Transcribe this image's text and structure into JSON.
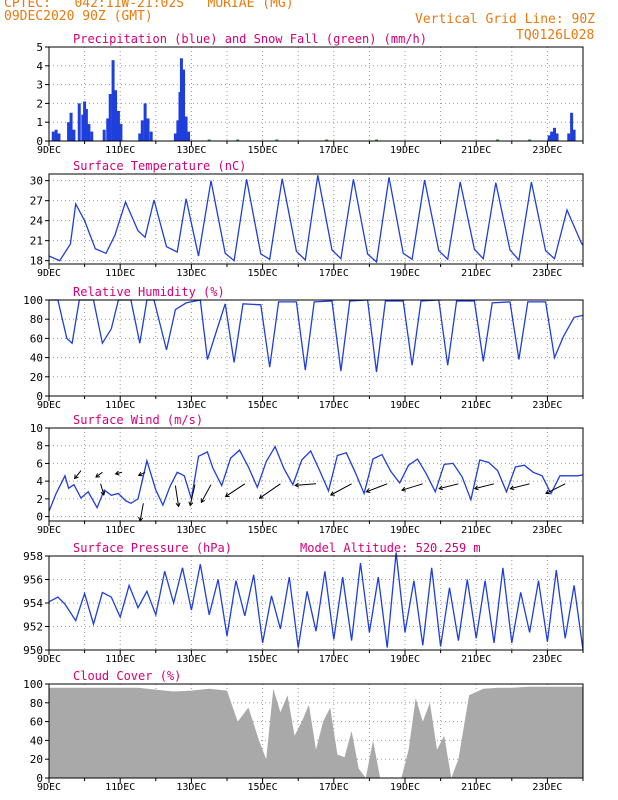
{
  "header": {
    "line1": "CPTEC:   042:11W-21:02S   MURIAE (MG)",
    "line2": "09DEC2020 90Z (GMT)",
    "grid_note": "Vertical Grid Line: 90Z",
    "code": "TQ0126L028"
  },
  "colors": {
    "accent": "#e87b10",
    "title": "#d4007a",
    "line": "#1f3fdc",
    "snow": "#1aa01a",
    "cloud": "#a9a9a9"
  },
  "x_axis": {
    "date_labels": [
      "9DEC",
      "11DEC",
      "13DEC",
      "15DEC",
      "17DEC",
      "19DEC",
      "21DEC",
      "23DEC"
    ],
    "label_days": [
      0,
      2,
      4,
      6,
      8,
      10,
      12,
      14
    ],
    "xlim_days": [
      0,
      15
    ]
  },
  "chart_data": [
    {
      "type": "bar",
      "title": "Precipitation (blue) and Snow Fall (green) (mm/h)",
      "ylim": [
        0,
        5
      ],
      "yticks": [
        0,
        1,
        2,
        3,
        4,
        5
      ],
      "series": [
        {
          "color": "blue",
          "points": [
            [
              0.12,
              0.5
            ],
            [
              0.2,
              0.6
            ],
            [
              0.28,
              0.4
            ],
            [
              0.55,
              1.0
            ],
            [
              0.62,
              1.5
            ],
            [
              0.7,
              0.6
            ],
            [
              0.85,
              2.0
            ],
            [
              0.95,
              1.4
            ],
            [
              1.0,
              2.1
            ],
            [
              1.05,
              1.7
            ],
            [
              1.12,
              0.9
            ],
            [
              1.2,
              0.5
            ],
            [
              1.55,
              0.6
            ],
            [
              1.65,
              1.2
            ],
            [
              1.72,
              2.5
            ],
            [
              1.8,
              4.3
            ],
            [
              1.87,
              2.7
            ],
            [
              1.95,
              1.6
            ],
            [
              2.02,
              0.9
            ],
            [
              2.55,
              0.4
            ],
            [
              2.62,
              1.1
            ],
            [
              2.7,
              2.0
            ],
            [
              2.78,
              1.2
            ],
            [
              2.87,
              0.5
            ],
            [
              3.55,
              0.4
            ],
            [
              3.62,
              1.1
            ],
            [
              3.68,
              2.6
            ],
            [
              3.72,
              4.4
            ],
            [
              3.78,
              3.8
            ],
            [
              3.85,
              1.3
            ],
            [
              3.92,
              0.5
            ],
            [
              14.05,
              0.3
            ],
            [
              14.12,
              0.5
            ],
            [
              14.2,
              0.7
            ],
            [
              14.27,
              0.4
            ],
            [
              14.6,
              0.4
            ],
            [
              14.68,
              1.5
            ],
            [
              14.75,
              0.6
            ]
          ]
        },
        {
          "color": "green",
          "points": [
            [
              4.5,
              0.08
            ],
            [
              5.3,
              0.08
            ],
            [
              6.4,
              0.08
            ],
            [
              7.8,
              0.08
            ],
            [
              9.2,
              0.08
            ],
            [
              12.6,
              0.08
            ],
            [
              13.5,
              0.08
            ]
          ]
        }
      ]
    },
    {
      "type": "line",
      "title": "Surface Temperature (nC)",
      "ylim": [
        17.5,
        31
      ],
      "yticks": [
        18,
        21,
        24,
        27,
        30
      ],
      "x": [
        0,
        0.3,
        0.6,
        0.75,
        1.0,
        1.3,
        1.6,
        1.85,
        2.15,
        2.5,
        2.7,
        2.95,
        3.3,
        3.6,
        3.85,
        4.2,
        4.55,
        4.95,
        5.2,
        5.55,
        5.95,
        6.2,
        6.55,
        6.95,
        7.2,
        7.55,
        7.95,
        8.2,
        8.55,
        8.95,
        9.2,
        9.55,
        9.95,
        10.2,
        10.55,
        10.95,
        11.2,
        11.55,
        11.95,
        12.2,
        12.55,
        12.95,
        13.2,
        13.55,
        13.95,
        14.2,
        14.55,
        14.95,
        15.0
      ],
      "y": [
        18.7,
        18.0,
        20.5,
        26.5,
        24.0,
        19.8,
        19.1,
        21.8,
        26.8,
        22.5,
        21.5,
        27.1,
        20.1,
        19.3,
        27.3,
        18.7,
        30.0,
        19.1,
        18.0,
        30.2,
        19.0,
        18.2,
        30.3,
        19.4,
        18.1,
        30.8,
        19.6,
        18.3,
        30.2,
        19.0,
        17.8,
        30.5,
        19.1,
        18.2,
        30.1,
        19.5,
        18.2,
        29.8,
        19.7,
        18.3,
        29.7,
        19.6,
        18.1,
        29.8,
        19.5,
        18.3,
        25.6,
        20.7,
        20.3
      ]
    },
    {
      "type": "line",
      "title": "Relative Humidity (%)",
      "ylim": [
        0,
        100
      ],
      "yticks": [
        0,
        20,
        40,
        60,
        80,
        100
      ],
      "x": [
        0,
        0.25,
        0.5,
        0.65,
        0.85,
        1.25,
        1.5,
        1.75,
        1.95,
        2.3,
        2.55,
        2.75,
        2.95,
        3.3,
        3.55,
        3.85,
        4.25,
        4.45,
        4.95,
        5.2,
        5.45,
        5.95,
        6.2,
        6.45,
        6.95,
        7.2,
        7.45,
        7.95,
        8.2,
        8.45,
        8.95,
        9.2,
        9.45,
        9.95,
        10.2,
        10.45,
        10.95,
        11.2,
        11.45,
        11.95,
        12.2,
        12.45,
        12.95,
        13.2,
        13.45,
        13.95,
        14.2,
        14.45,
        14.75,
        15.0
      ],
      "y": [
        100,
        100,
        60,
        55,
        100,
        100,
        55,
        70,
        100,
        100,
        55,
        100,
        100,
        48,
        90,
        97,
        100,
        38,
        96,
        35,
        96,
        95,
        30,
        98,
        98,
        27,
        98,
        99,
        26,
        99,
        100,
        25,
        99,
        99,
        32,
        99,
        100,
        32,
        99,
        99,
        36,
        97,
        98,
        38,
        98,
        98,
        40,
        62,
        82,
        84
      ]
    },
    {
      "type": "line",
      "title": "Surface Wind (m/s)",
      "ylim": [
        -0.5,
        10
      ],
      "yticks": [
        0,
        2,
        4,
        6,
        8,
        10
      ],
      "x": [
        0,
        0.2,
        0.45,
        0.55,
        0.7,
        0.9,
        1.1,
        1.35,
        1.55,
        1.75,
        1.95,
        2.15,
        2.3,
        2.5,
        2.75,
        3.0,
        3.2,
        3.4,
        3.6,
        3.8,
        4.0,
        4.2,
        4.45,
        4.6,
        4.85,
        5.1,
        5.35,
        5.6,
        5.85,
        6.1,
        6.35,
        6.6,
        6.85,
        7.1,
        7.35,
        7.6,
        7.85,
        8.1,
        8.35,
        8.6,
        8.85,
        9.1,
        9.35,
        9.6,
        9.85,
        10.1,
        10.35,
        10.6,
        10.85,
        11.1,
        11.35,
        11.6,
        11.85,
        12.1,
        12.35,
        12.6,
        12.85,
        13.1,
        13.35,
        13.6,
        13.85,
        14.1,
        14.35,
        14.6,
        14.85,
        15.0
      ],
      "y": [
        0.6,
        2.6,
        4.6,
        3.2,
        3.6,
        2.1,
        2.8,
        1.0,
        3.0,
        2.4,
        2.6,
        1.8,
        1.5,
        2.0,
        6.3,
        3.0,
        1.3,
        3.4,
        5.0,
        4.6,
        2.0,
        6.8,
        7.3,
        5.5,
        3.5,
        6.6,
        7.5,
        5.6,
        3.3,
        6.2,
        7.9,
        5.4,
        3.6,
        6.4,
        7.4,
        5.2,
        2.9,
        6.9,
        7.2,
        5.0,
        2.6,
        6.5,
        7.0,
        5.1,
        3.8,
        5.8,
        6.5,
        4.8,
        2.8,
        5.9,
        6.0,
        4.5,
        1.9,
        6.4,
        6.1,
        5.2,
        2.8,
        5.6,
        5.8,
        5.0,
        4.6,
        2.6,
        4.6,
        4.6,
        4.6,
        4.7
      ]
    },
    {
      "type": "line",
      "title": "Surface Pressure (hPa)",
      "subtitle": "Model Altitude: 520.259 m",
      "ylim": [
        950,
        958
      ],
      "yticks": [
        950,
        952,
        954,
        956,
        958
      ],
      "x": [
        0,
        0.25,
        0.45,
        0.75,
        1.0,
        1.25,
        1.5,
        1.75,
        2.0,
        2.25,
        2.5,
        2.75,
        3.0,
        3.25,
        3.5,
        3.75,
        4.0,
        4.25,
        4.5,
        4.75,
        5.0,
        5.25,
        5.5,
        5.75,
        6.0,
        6.25,
        6.5,
        6.75,
        7.0,
        7.25,
        7.5,
        7.75,
        8.0,
        8.25,
        8.5,
        8.75,
        9.0,
        9.25,
        9.5,
        9.75,
        10.0,
        10.25,
        10.5,
        10.75,
        11.0,
        11.25,
        11.5,
        11.75,
        12.0,
        12.25,
        12.5,
        12.75,
        13.0,
        13.25,
        13.5,
        13.75,
        14.0,
        14.25,
        14.5,
        14.75,
        15.0
      ],
      "y": [
        954.1,
        954.5,
        953.9,
        952.5,
        954.8,
        952.2,
        954.9,
        954.5,
        952.8,
        955.5,
        953.6,
        955.0,
        953.0,
        956.7,
        954.0,
        957.0,
        953.4,
        957.3,
        953.0,
        956.0,
        951.2,
        955.9,
        952.9,
        956.4,
        950.6,
        954.6,
        951.8,
        956.2,
        950.2,
        955.0,
        951.6,
        956.7,
        950.9,
        956.2,
        950.8,
        957.4,
        951.5,
        956.2,
        950.2,
        958.3,
        951.5,
        955.9,
        950.4,
        957.0,
        950.3,
        955.3,
        950.8,
        956.0,
        951.0,
        955.9,
        950.6,
        957.0,
        950.6,
        954.9,
        951.5,
        955.9,
        950.7,
        956.8,
        951.0,
        955.5,
        950.0
      ]
    },
    {
      "type": "area",
      "title": "Cloud Cover (%)",
      "ylim": [
        0,
        100
      ],
      "yticks": [
        0,
        20,
        40,
        60,
        80,
        100
      ],
      "x": [
        0,
        0.5,
        1.0,
        1.5,
        2.0,
        2.5,
        3.0,
        3.5,
        4.0,
        4.5,
        5.0,
        5.3,
        5.6,
        5.9,
        6.1,
        6.3,
        6.5,
        6.7,
        6.9,
        7.1,
        7.3,
        7.5,
        7.7,
        7.9,
        8.1,
        8.3,
        8.5,
        8.7,
        8.9,
        9.1,
        9.3,
        9.5,
        9.7,
        9.9,
        10.1,
        10.3,
        10.5,
        10.7,
        10.9,
        11.1,
        11.3,
        11.5,
        11.8,
        12.2,
        12.6,
        13.0,
        13.5,
        14.0,
        14.5,
        15.0
      ],
      "y": [
        96,
        96,
        96,
        96,
        96,
        96,
        94,
        92,
        93,
        95,
        93,
        60,
        75,
        40,
        20,
        95,
        70,
        88,
        45,
        60,
        78,
        30,
        60,
        75,
        25,
        22,
        50,
        10,
        0,
        40,
        0,
        0,
        0,
        0,
        30,
        85,
        60,
        80,
        30,
        45,
        0,
        20,
        88,
        95,
        96,
        96,
        97,
        97,
        97,
        97
      ]
    }
  ],
  "wind_arrows": {
    "positions": [
      [
        0.9,
        5.2
      ],
      [
        1.5,
        5.0
      ],
      [
        2.05,
        5.0
      ],
      [
        2.7,
        5.0
      ],
      [
        1.45,
        3.7
      ],
      [
        2.65,
        1.5
      ],
      [
        3.55,
        3.5
      ],
      [
        4.1,
        3.6
      ],
      [
        4.55,
        3.6
      ],
      [
        5.5,
        3.7
      ],
      [
        6.5,
        3.7
      ],
      [
        7.5,
        3.7
      ],
      [
        8.5,
        3.7
      ],
      [
        9.5,
        3.7
      ],
      [
        10.5,
        3.7
      ],
      [
        11.5,
        3.7
      ],
      [
        12.5,
        3.7
      ],
      [
        13.5,
        3.7
      ],
      [
        14.5,
        3.7
      ]
    ],
    "vectors": [
      [
        -4,
        -5
      ],
      [
        -4,
        -3
      ],
      [
        -4,
        -1
      ],
      [
        -4,
        -2
      ],
      [
        2,
        -7
      ],
      [
        -2,
        -11
      ],
      [
        2,
        -13
      ],
      [
        -3,
        -13
      ],
      [
        -6,
        -11
      ],
      [
        -12,
        -8
      ],
      [
        -13,
        -9
      ],
      [
        -13,
        -1
      ],
      [
        -13,
        -7
      ],
      [
        -13,
        -5
      ],
      [
        -13,
        -4
      ],
      [
        -12,
        -3
      ],
      [
        -12,
        -3
      ],
      [
        -12,
        -3
      ],
      [
        -12,
        -6
      ]
    ]
  }
}
